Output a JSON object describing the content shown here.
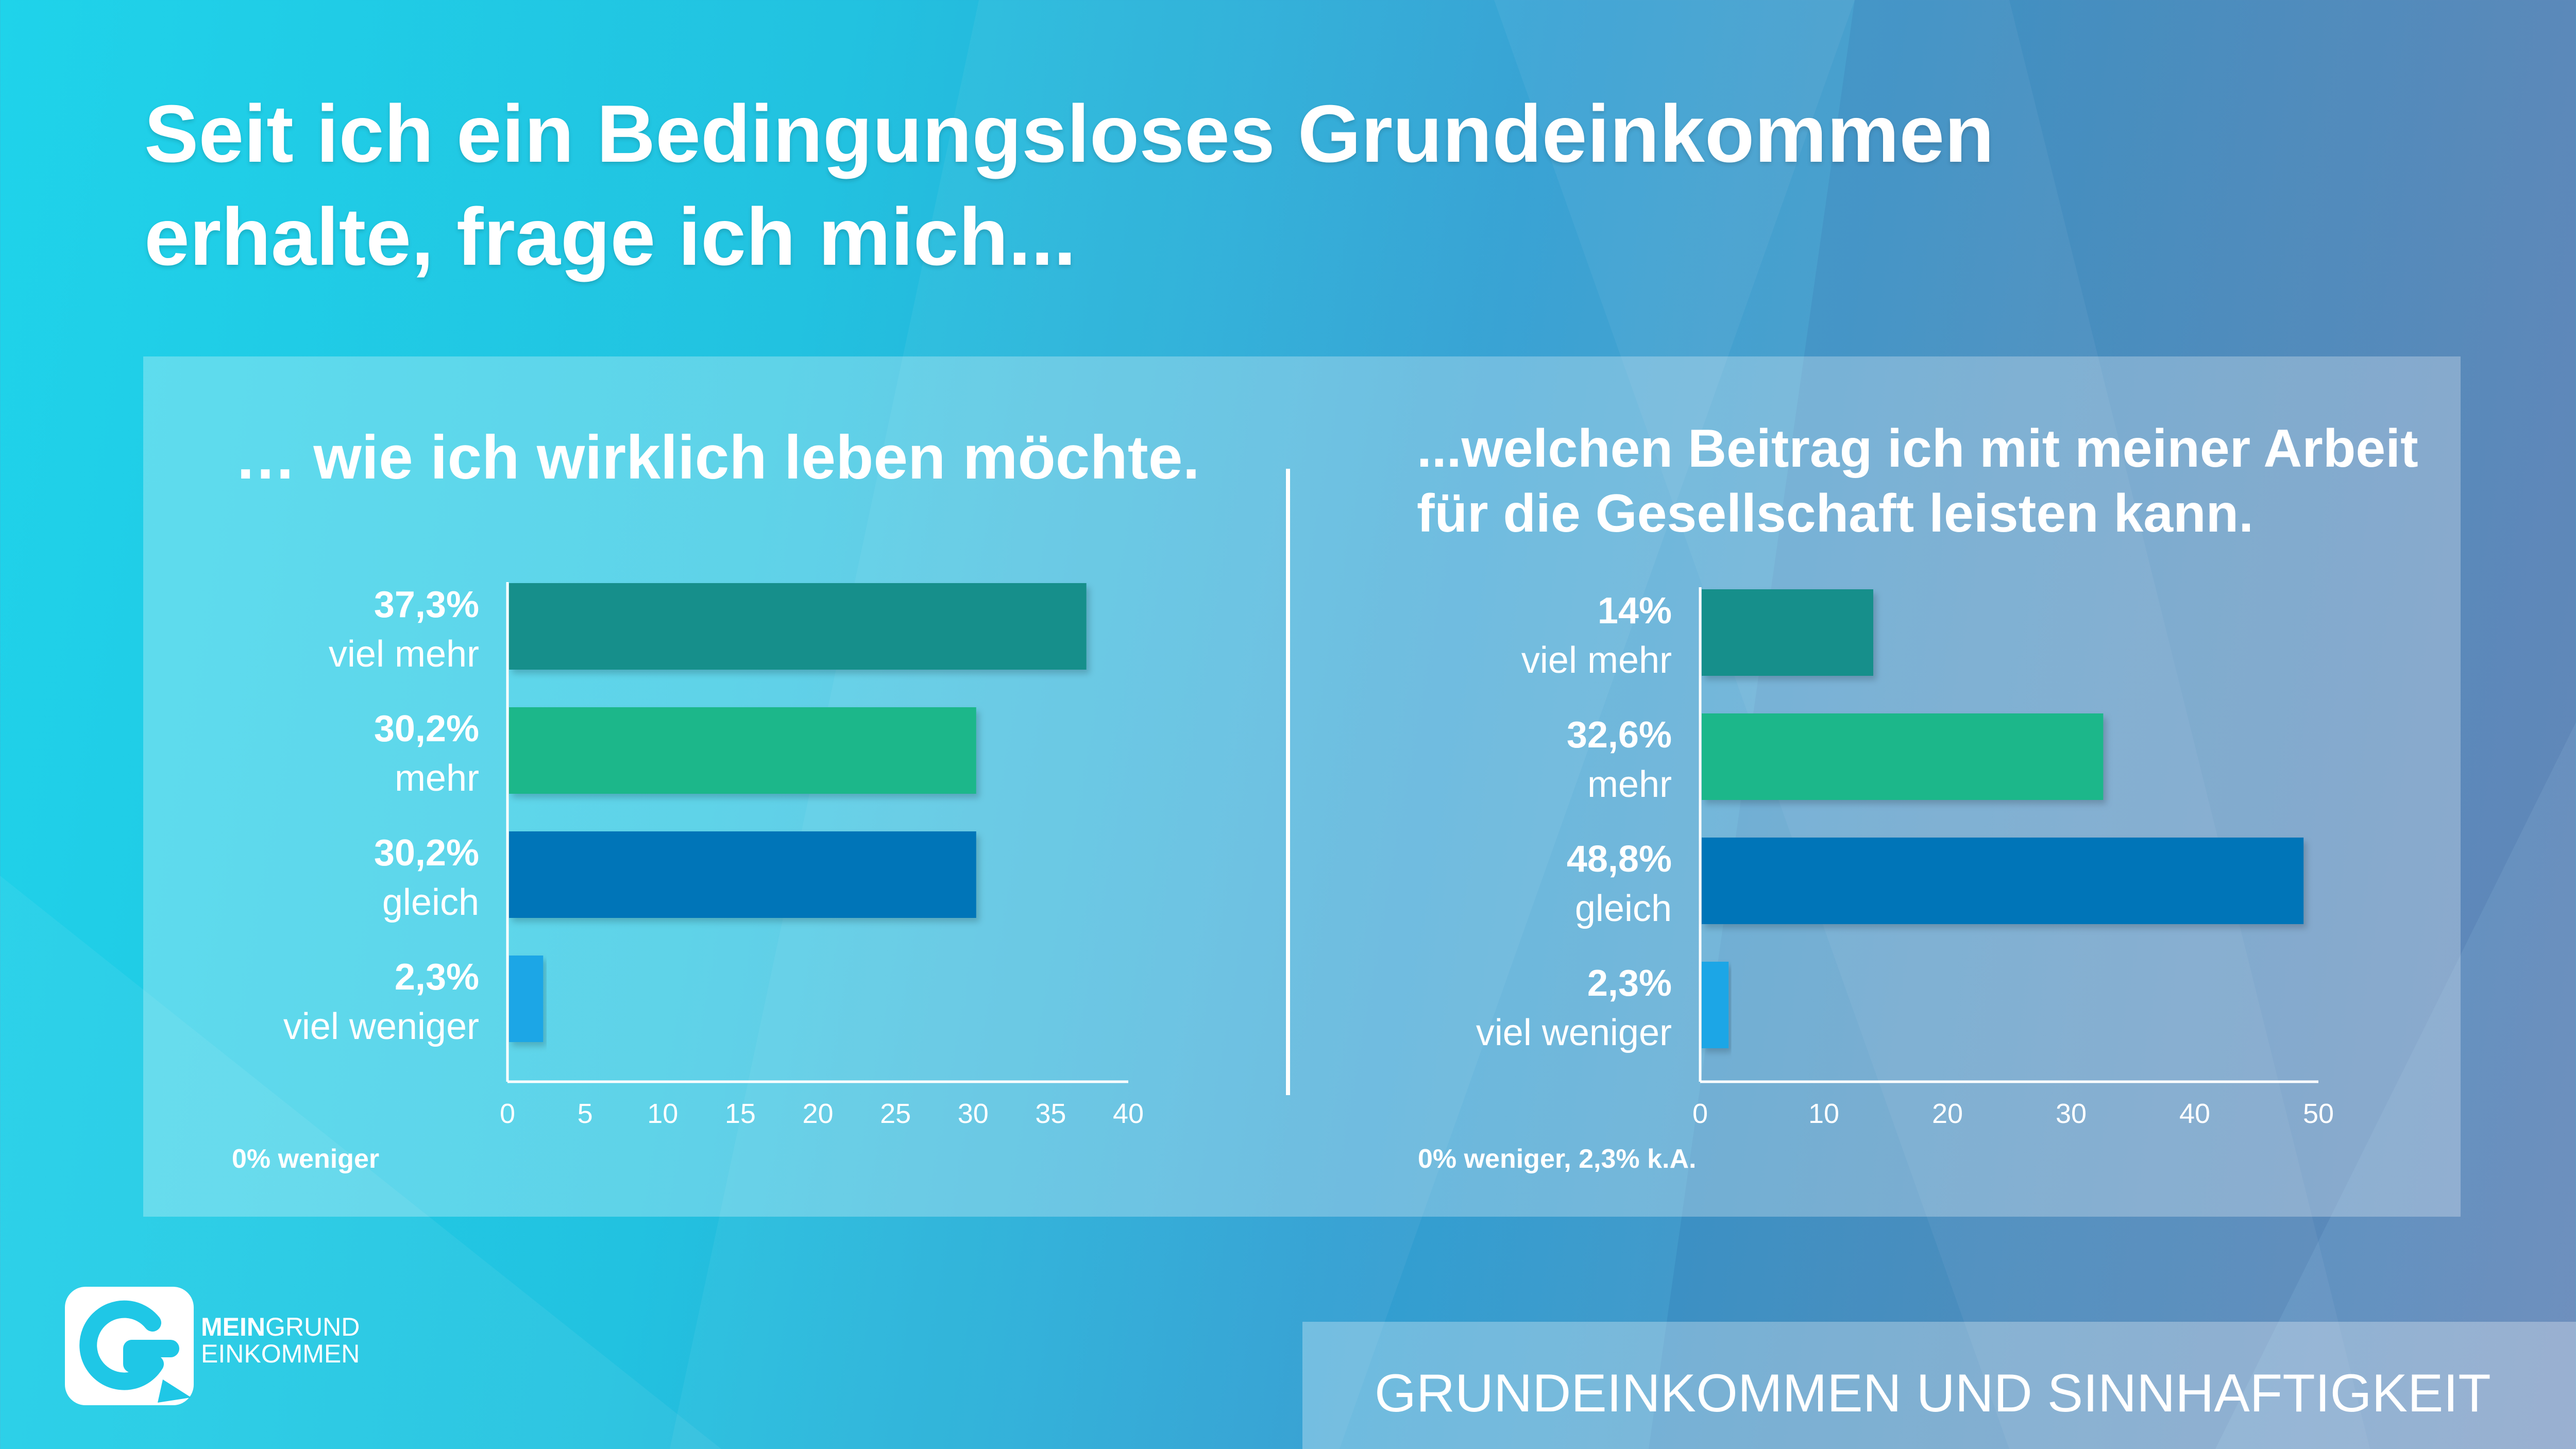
{
  "title": {
    "line1": "Seit ich ein Bedingungsloses Grundeinkommen",
    "line2": "erhalte, frage ich mich..."
  },
  "charts": [
    {
      "subtitle": "… wie ich wirklich leben möchte.",
      "note": "0% weniger"
    },
    {
      "subtitle_line1": "...welchen Beitrag ich mit meiner Arbeit",
      "subtitle_line2": "für die Gesellschaft leisten kann.",
      "note": "0% weniger, 2,3% k.A."
    }
  ],
  "chart_data": [
    {
      "type": "bar",
      "orientation": "horizontal",
      "title": "… wie ich wirklich leben möchte.",
      "categories": [
        "viel mehr",
        "mehr",
        "gleich",
        "viel weniger"
      ],
      "values": [
        37.3,
        30.2,
        30.2,
        2.3
      ],
      "value_labels": [
        "37,3%",
        "30,2%",
        "30,2%",
        "2,3%"
      ],
      "colors": [
        "#148f8b",
        "#1fb78a",
        "#0074b8",
        "#1ea6e6"
      ],
      "xlim": [
        0,
        40
      ],
      "xticks": [
        0,
        5,
        10,
        15,
        20,
        25,
        30,
        35,
        40
      ],
      "grid": false
    },
    {
      "type": "bar",
      "orientation": "horizontal",
      "title": "...welchen Beitrag ich mit meiner Arbeit für die Gesellschaft leisten kann.",
      "categories": [
        "viel mehr",
        "mehr",
        "gleich",
        "viel weniger"
      ],
      "values": [
        14,
        32.6,
        48.8,
        2.3
      ],
      "value_labels": [
        "14%",
        "32,6%",
        "48,8%",
        "2,3%"
      ],
      "colors": [
        "#148f8b",
        "#1fb78a",
        "#0074b8",
        "#1ea6e6"
      ],
      "xlim": [
        0,
        50
      ],
      "xticks": [
        0,
        10,
        20,
        30,
        40,
        50
      ],
      "grid": false
    }
  ],
  "brand": {
    "bold": "MEIN",
    "regular": "GRUND",
    "line2": "EINKOMMEN"
  },
  "footer": "GRUNDEINKOMMEN UND SINNHAFTIGKEIT"
}
